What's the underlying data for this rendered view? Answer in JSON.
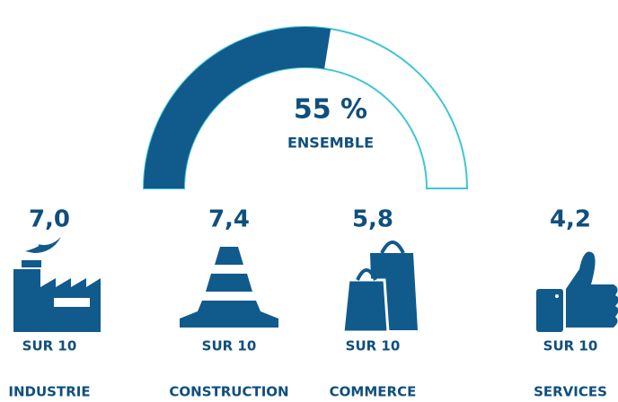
{
  "chart_data": {
    "type": "gauge",
    "value": 55,
    "value_label": "55 %",
    "label": "ENSEMBLE",
    "ylim": [
      0,
      100
    ],
    "color": "#115a8c",
    "track_color": "#3ec6d6",
    "categories": [
      "INDUSTRIE",
      "CONSTRUCTION",
      "COMMERCE",
      "SERVICES"
    ],
    "values": [
      7.0,
      7.4,
      5.8,
      4.2
    ],
    "value_labels": [
      "7,0",
      "7,4",
      "5,8",
      "4,2"
    ],
    "unit_label": "SUR 10"
  }
}
